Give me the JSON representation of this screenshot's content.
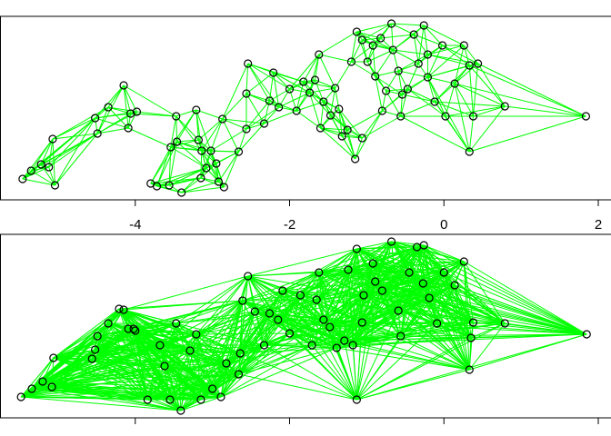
{
  "chart_data": [
    {
      "type": "network",
      "edge_color": "#00ff00",
      "marker_edge_color": "#000000",
      "xlim": [
        -5.741,
        2.165
      ],
      "ylim": [
        0,
        202
      ],
      "xticks": [
        -4,
        -2,
        0,
        2
      ],
      "x": [
        -5.46,
        -5.35,
        -5.22,
        -5.12,
        -5.04,
        -5.07,
        -4.52,
        -4.49,
        -4.35,
        -4.15,
        -4.06,
        -3.98,
        -4.09,
        -3.8,
        -3.72,
        -3.56,
        -3.4,
        -3.54,
        -3.46,
        -3.47,
        -3.21,
        -3.18,
        -3.14,
        -3.08,
        -3.02,
        -2.95,
        -2.85,
        -2.92,
        -3.15,
        -2.87,
        -2.66,
        -2.56,
        -2.54,
        -2.56,
        -2.33,
        -2.26,
        -2.21,
        -2.14,
        -2.0,
        -1.91,
        -1.82,
        -1.74,
        -1.62,
        -1.6,
        -1.56,
        -1.67,
        -1.47,
        -1.41,
        -1.36,
        -1.32,
        -1.25,
        -1.2,
        -1.13,
        -1.15,
        -1.06,
        -0.99,
        -0.92,
        -0.89,
        -0.8,
        -0.75,
        -0.68,
        -0.66,
        -0.59,
        -0.56,
        -0.47,
        -0.39,
        -0.33,
        -0.26,
        -0.21,
        -0.12,
        -0.02,
        0.02,
        0.14,
        0.26,
        0.33,
        0.33,
        0.38,
        0.44,
        0.79,
        1.84,
        -1.06,
        -0.82,
        -0.54,
        -0.21
      ],
      "y": [
        23,
        32,
        39,
        36,
        16,
        67,
        90,
        73,
        102,
        126,
        95,
        97,
        79,
        18,
        15,
        16,
        8,
        58,
        64,
        92,
        99,
        66,
        54,
        35,
        54,
        40,
        14,
        20,
        24,
        89,
        53,
        78,
        150,
        117,
        84,
        109,
        140,
        102,
        122,
        98,
        130,
        118,
        160,
        79,
        108,
        132,
        93,
        123,
        100,
        70,
        77,
        152,
        185,
        45,
        68,
        152,
        170,
        136,
        98,
        120,
        194,
        165,
        142,
        92,
        122,
        182,
        150,
        192,
        135,
        108,
        170,
        92,
        128,
        170,
        148,
        53,
        92,
        150,
        103,
        92,
        176,
        178,
        116,
        160
      ]
    },
    {
      "type": "network",
      "edge_color": "#00ff00",
      "marker_edge_color": "#000000",
      "xlim": [
        -5.741,
        2.165
      ],
      "ylim": [
        0,
        202
      ],
      "xticks": [
        -4,
        -2,
        0,
        2
      ],
      "x": [
        -5.48,
        -5.34,
        -5.2,
        -5.06,
        -5.08,
        -4.52,
        -4.49,
        -4.35,
        -4.15,
        -4.02,
        -4.0,
        -3.84,
        -3.62,
        -3.55,
        -3.41,
        -3.47,
        -3.29,
        -3.21,
        -3.15,
        -3.0,
        -2.89,
        -2.82,
        -2.66,
        -2.64,
        -2.61,
        -2.54,
        -2.45,
        -2.33,
        -2.26,
        -2.15,
        -2.0,
        -1.86,
        -1.71,
        -1.65,
        -1.56,
        -1.48,
        -1.39,
        -1.29,
        -1.24,
        -1.18,
        -1.13,
        -1.13,
        -1.06,
        -0.92,
        -0.89,
        -0.8,
        -0.68,
        -0.59,
        -0.56,
        -0.45,
        -0.35,
        -0.27,
        -0.26,
        -0.19,
        -0.09,
        0.0,
        0.14,
        0.26,
        0.35,
        0.33,
        0.38,
        0.79,
        1.85,
        -1.04,
        -1.62,
        -2.09,
        -3.68,
        -4.21,
        -4.09,
        -4.56
      ],
      "y": [
        23,
        32,
        40,
        66,
        34,
        75,
        90,
        104,
        119,
        98,
        96,
        20,
        57,
        20,
        8,
        104,
        74,
        92,
        20,
        32,
        23,
        60,
        48,
        71,
        129,
        156,
        117,
        80,
        115,
        108,
        93,
        135,
        80,
        130,
        108,
        100,
        77,
        85,
        163,
        80,
        186,
        20,
        105,
        170,
        150,
        140,
        194,
        118,
        90,
        160,
        188,
        148,
        190,
        132,
        104,
        160,
        146,
        172,
        88,
        53,
        105,
        104,
        92,
        135,
        160,
        140,
        80,
        120,
        98,
        65
      ]
    }
  ]
}
